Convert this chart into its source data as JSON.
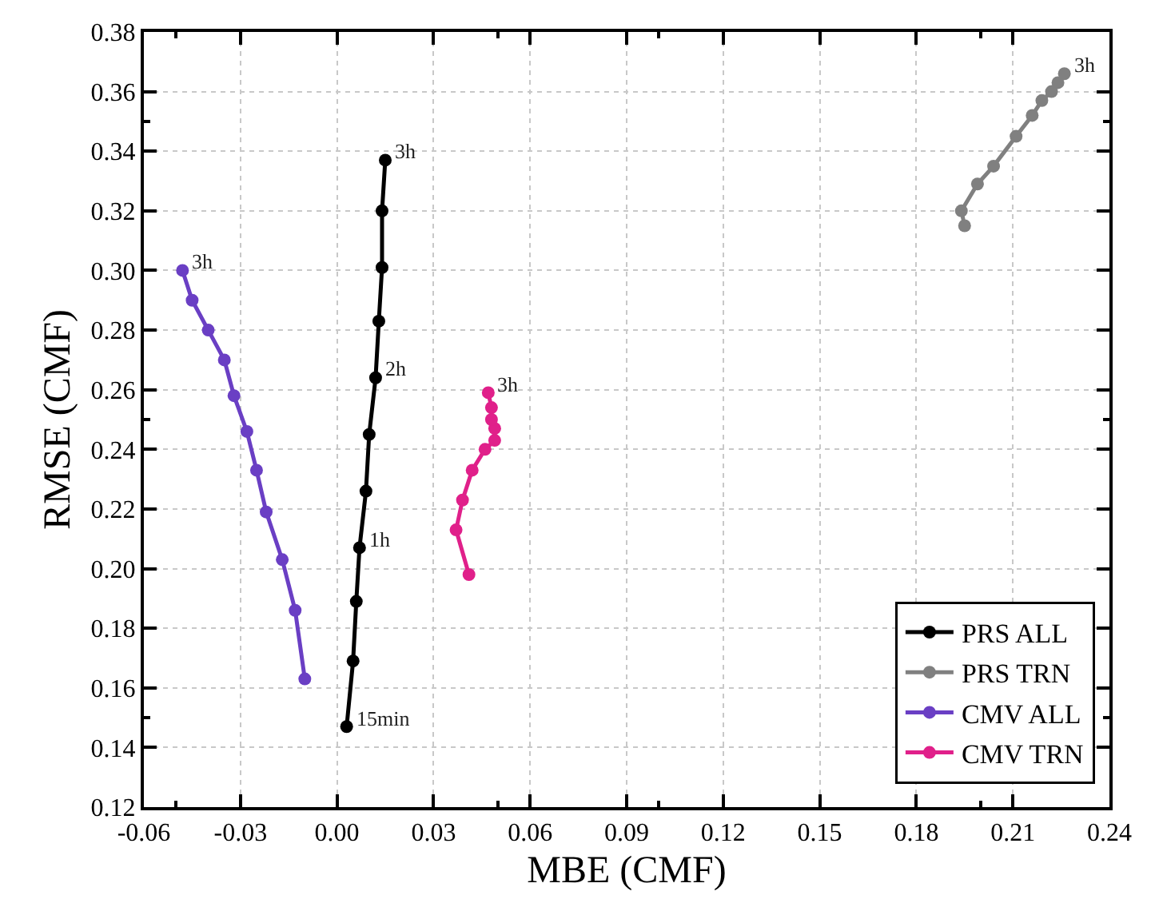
{
  "chart_data": {
    "type": "line",
    "xlabel": "MBE (CMF)",
    "ylabel": "RMSE (CMF)",
    "xlim": [
      -0.06,
      0.24
    ],
    "xticks": [
      -0.06,
      -0.03,
      {
        "value": 0,
        "label": "0.00"
      },
      0.03,
      0.06,
      0.09,
      0.12,
      0.15,
      0.18,
      0.21,
      0.24
    ],
    "ylim": [
      0.12,
      0.38
    ],
    "yticks": [
      0.12,
      0.14,
      0.16,
      0.18,
      {
        "value": 0.2,
        "label": "0.20"
      },
      0.22,
      0.24,
      0.26,
      0.28,
      {
        "value": 0.3,
        "label": "0.30"
      },
      0.32,
      0.34,
      0.36,
      0.38
    ],
    "grid": true,
    "legend": "bottom right",
    "marker": "circle",
    "line_style": "solid",
    "series": [
      {
        "name": "PRS ALL",
        "color": "#000000",
        "x": [
          0.003,
          0.005,
          0.006,
          0.007,
          0.009,
          0.01,
          0.012,
          0.013,
          0.014,
          0.014,
          0.015
        ],
        "values": [
          0.147,
          0.169,
          0.189,
          0.207,
          0.226,
          0.245,
          0.264,
          0.283,
          0.301,
          0.32,
          0.337
        ]
      },
      {
        "name": "PRS TRN",
        "color": "#808080",
        "x": [
          0.195,
          0.194,
          0.199,
          0.204,
          0.211,
          0.216,
          0.219,
          0.222,
          0.224,
          0.226
        ],
        "values": [
          0.315,
          0.32,
          0.329,
          0.335,
          0.345,
          0.352,
          0.357,
          0.36,
          0.363,
          0.366
        ]
      },
      {
        "name": "CMV ALL",
        "color": "#6a3fc4",
        "x": [
          -0.048,
          -0.045,
          -0.04,
          -0.035,
          -0.032,
          -0.028,
          -0.025,
          -0.022,
          -0.017,
          -0.013,
          -0.01
        ],
        "values": [
          0.3,
          0.29,
          0.28,
          0.27,
          0.258,
          0.246,
          0.233,
          0.219,
          0.203,
          0.186,
          0.163
        ]
      },
      {
        "name": "CMV TRN",
        "color": "#e0208a",
        "x": [
          0.041,
          0.037,
          0.039,
          0.042,
          0.046,
          0.049,
          0.049,
          0.048,
          0.048,
          0.047
        ],
        "values": [
          0.198,
          0.213,
          0.223,
          0.233,
          0.24,
          0.243,
          0.247,
          0.25,
          0.254,
          0.259
        ]
      }
    ],
    "annotations": [
      {
        "text": "3h",
        "x": 0.015,
        "y": 0.337
      },
      {
        "text": "2h",
        "x": 0.012,
        "y": 0.264
      },
      {
        "text": "1h",
        "x": 0.007,
        "y": 0.207
      },
      {
        "text": "15min",
        "x": 0.003,
        "y": 0.147
      },
      {
        "text": "3h",
        "x": 0.226,
        "y": 0.366
      },
      {
        "text": "3h",
        "x": -0.048,
        "y": 0.3
      },
      {
        "text": "3h",
        "x": 0.047,
        "y": 0.259
      }
    ]
  }
}
